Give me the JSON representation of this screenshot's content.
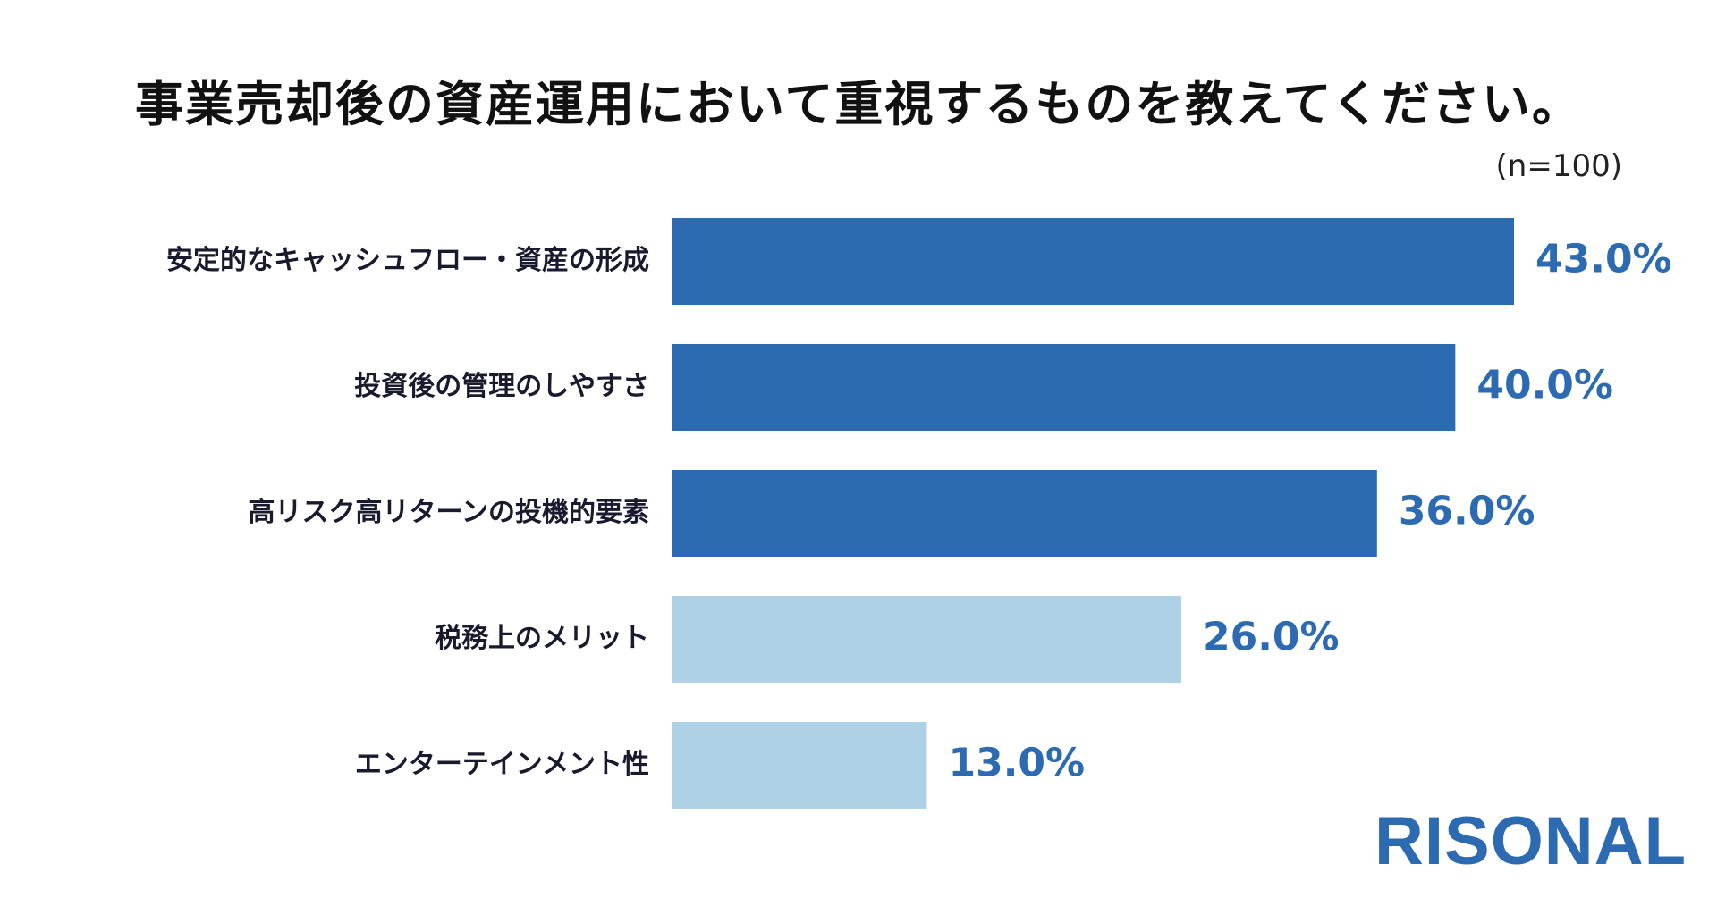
{
  "chart_data": {
    "type": "bar",
    "orientation": "horizontal",
    "title": "事業売却後の資産運用において重視するものを教えてください。",
    "sample_note": "(n=100)",
    "categories": [
      "安定的なキャッシュフロー・資産の形成",
      "投資後の管理のしやすさ",
      "高リスク高リターンの投機的要素",
      "税務上のメリット",
      "エンターテインメント性"
    ],
    "values": [
      43.0,
      40.0,
      36.0,
      26.0,
      13.0
    ],
    "value_labels": [
      "43.0%",
      "40.0%",
      "36.0%",
      "26.0%",
      "13.0%"
    ],
    "value_unit": "%",
    "xlim": [
      0,
      50
    ],
    "grid": false,
    "bar_colors": [
      "#2c6ab1",
      "#2c6ab1",
      "#2c6ab1",
      "#aed1e6",
      "#aed1e6"
    ],
    "value_label_color": "#2c6ab1"
  },
  "brand": {
    "logo_text": "RISONAL",
    "logo_color": "#2c6ab1"
  }
}
